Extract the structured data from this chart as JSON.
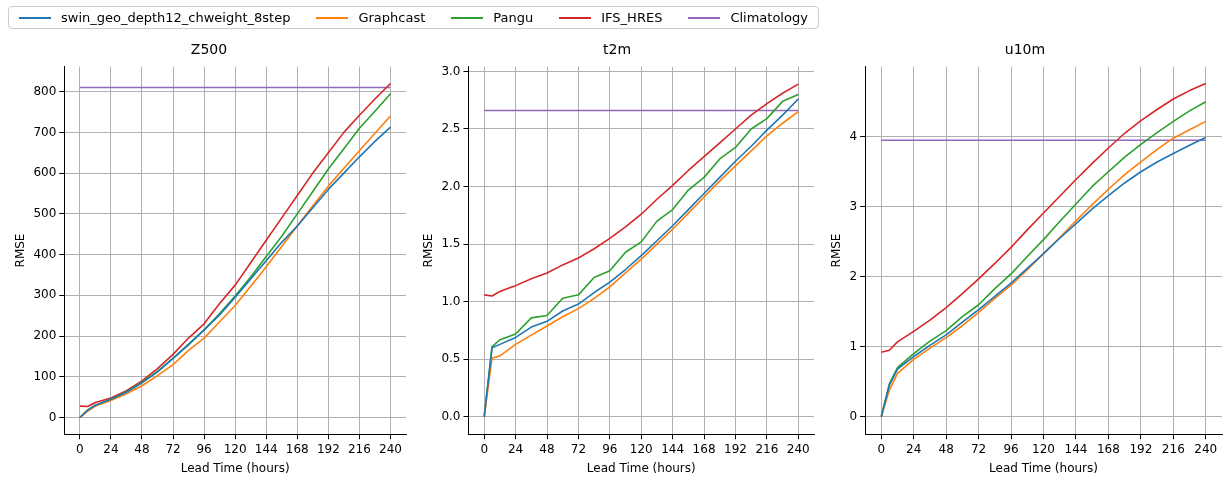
{
  "chart_data": [
    {
      "type": "line",
      "title": "Z500",
      "xlabel": "Lead Time (hours)",
      "ylabel": "RMSE",
      "legend": "top",
      "grid": true,
      "line_style": "solid",
      "marker": "none",
      "x": [
        0,
        6,
        12,
        24,
        36,
        48,
        60,
        72,
        84,
        96,
        108,
        120,
        132,
        144,
        156,
        168,
        180,
        192,
        204,
        216,
        228,
        240
      ],
      "xlim": [
        -12,
        252
      ],
      "xticks": [
        0,
        24,
        48,
        72,
        96,
        120,
        144,
        168,
        192,
        216,
        240
      ],
      "ylim": [
        -41,
        861
      ],
      "yticks": [
        0,
        100,
        200,
        300,
        400,
        500,
        600,
        700,
        800
      ],
      "series": [
        {
          "name": "swin_geo_depth12_chweight_8step",
          "color": "#1f77b4",
          "values": [
            0,
            18,
            30,
            45,
            62,
            85,
            112,
            145,
            180,
            215,
            252,
            295,
            340,
            385,
            430,
            470,
            515,
            560,
            600,
            640,
            678,
            713
          ]
        },
        {
          "name": "Graphcast",
          "color": "#ff7f0e",
          "values": [
            0,
            15,
            28,
            42,
            58,
            78,
            103,
            130,
            165,
            195,
            235,
            275,
            322,
            370,
            420,
            470,
            520,
            568,
            612,
            655,
            698,
            740
          ]
        },
        {
          "name": "Pangu",
          "color": "#2ca02c",
          "values": [
            0,
            18,
            30,
            45,
            63,
            87,
            113,
            145,
            178,
            215,
            255,
            298,
            345,
            395,
            445,
            500,
            555,
            610,
            660,
            710,
            752,
            795
          ]
        },
        {
          "name": "IFS_HRES",
          "color": "#d62728",
          "values": [
            28,
            27,
            37,
            48,
            66,
            90,
            120,
            155,
            195,
            230,
            280,
            325,
            380,
            435,
            490,
            545,
            600,
            650,
            700,
            742,
            782,
            820
          ]
        },
        {
          "name": "Climatology",
          "color": "#9467bd",
          "values": [
            810,
            810,
            810,
            810,
            810,
            810,
            810,
            810,
            810,
            810,
            810,
            810,
            810,
            810,
            810,
            810,
            810,
            810,
            810,
            810,
            810,
            810
          ]
        }
      ]
    },
    {
      "type": "line",
      "title": "t2m",
      "xlabel": "Lead Time (hours)",
      "ylabel": "RMSE",
      "grid": true,
      "line_style": "solid",
      "marker": "none",
      "x": [
        0,
        6,
        12,
        24,
        36,
        48,
        60,
        72,
        84,
        96,
        108,
        120,
        132,
        144,
        156,
        168,
        180,
        192,
        204,
        216,
        228,
        240
      ],
      "xlim": [
        -12,
        252
      ],
      "xticks": [
        0,
        24,
        48,
        72,
        96,
        120,
        144,
        168,
        192,
        216,
        240
      ],
      "ylim": [
        -0.15,
        3.04
      ],
      "yticks": [
        {
          "value": 0,
          "label": "0.0"
        },
        {
          "value": 0.5,
          "label": "0.5"
        },
        {
          "value": 1,
          "label": "1.0"
        },
        {
          "value": 1.5,
          "label": "1.5"
        },
        {
          "value": 2,
          "label": "2.0"
        },
        {
          "value": 2.5,
          "label": "2.5"
        },
        {
          "value": 3,
          "label": "3.0"
        }
      ],
      "series": [
        {
          "color": "#1f77b4",
          "values": [
            0,
            0.6,
            0.63,
            0.69,
            0.78,
            0.83,
            0.92,
            0.98,
            1.08,
            1.17,
            1.28,
            1.4,
            1.53,
            1.66,
            1.8,
            1.94,
            2.08,
            2.22,
            2.35,
            2.49,
            2.62,
            2.76
          ]
        },
        {
          "color": "#ff7f0e",
          "values": [
            0,
            0.51,
            0.53,
            0.63,
            0.71,
            0.79,
            0.87,
            0.94,
            1.03,
            1.13,
            1.25,
            1.37,
            1.5,
            1.63,
            1.77,
            1.91,
            2.05,
            2.18,
            2.31,
            2.44,
            2.55,
            2.65
          ]
        },
        {
          "color": "#2ca02c",
          "values": [
            0,
            0.61,
            0.67,
            0.72,
            0.86,
            0.88,
            1.03,
            1.06,
            1.21,
            1.27,
            1.43,
            1.52,
            1.7,
            1.8,
            1.97,
            2.08,
            2.24,
            2.34,
            2.5,
            2.59,
            2.74,
            2.8
          ]
        },
        {
          "color": "#d62728",
          "values": [
            1.06,
            1.05,
            1.09,
            1.14,
            1.2,
            1.25,
            1.32,
            1.38,
            1.46,
            1.55,
            1.65,
            1.76,
            1.89,
            2.01,
            2.14,
            2.26,
            2.38,
            2.5,
            2.62,
            2.72,
            2.81,
            2.89
          ]
        },
        {
          "color": "#9467bd",
          "values": [
            2.66,
            2.66,
            2.66,
            2.66,
            2.66,
            2.66,
            2.66,
            2.66,
            2.66,
            2.66,
            2.66,
            2.66,
            2.66,
            2.66,
            2.66,
            2.66,
            2.66,
            2.66,
            2.66,
            2.66,
            2.66,
            2.66
          ]
        }
      ]
    },
    {
      "type": "line",
      "title": "u10m",
      "xlabel": "Lead Time (hours)",
      "ylabel": "RMSE",
      "grid": true,
      "line_style": "solid",
      "marker": "none",
      "x": [
        0,
        6,
        12,
        24,
        36,
        48,
        60,
        72,
        84,
        96,
        108,
        120,
        132,
        144,
        156,
        168,
        180,
        192,
        204,
        216,
        228,
        240
      ],
      "xlim": [
        -12,
        252
      ],
      "xticks": [
        0,
        24,
        48,
        72,
        96,
        120,
        144,
        168,
        192,
        216,
        240
      ],
      "ylim": [
        -0.25,
        5
      ],
      "yticks": [
        0,
        1,
        2,
        3,
        4
      ],
      "series": [
        {
          "color": "#1f77b4",
          "values": [
            0,
            0.45,
            0.68,
            0.86,
            1.02,
            1.17,
            1.35,
            1.53,
            1.72,
            1.91,
            2.12,
            2.33,
            2.55,
            2.76,
            2.97,
            3.16,
            3.34,
            3.5,
            3.64,
            3.76,
            3.88,
            3.99
          ]
        },
        {
          "color": "#ff7f0e",
          "values": [
            0,
            0.38,
            0.62,
            0.82,
            0.98,
            1.13,
            1.3,
            1.49,
            1.69,
            1.88,
            2.1,
            2.33,
            2.56,
            2.8,
            3.03,
            3.25,
            3.46,
            3.64,
            3.82,
            3.98,
            4.1,
            4.22
          ]
        },
        {
          "color": "#2ca02c",
          "values": [
            0,
            0.47,
            0.7,
            0.9,
            1.08,
            1.23,
            1.43,
            1.6,
            1.83,
            2.04,
            2.29,
            2.53,
            2.79,
            3.04,
            3.29,
            3.5,
            3.71,
            3.89,
            4.06,
            4.22,
            4.37,
            4.5
          ]
        },
        {
          "color": "#d62728",
          "values": [
            0.92,
            0.95,
            1.07,
            1.22,
            1.38,
            1.56,
            1.76,
            1.97,
            2.19,
            2.42,
            2.67,
            2.91,
            3.15,
            3.39,
            3.62,
            3.84,
            4.05,
            4.23,
            4.39,
            4.54,
            4.66,
            4.76
          ]
        },
        {
          "color": "#9467bd",
          "values": [
            3.95,
            3.95,
            3.95,
            3.95,
            3.95,
            3.95,
            3.95,
            3.95,
            3.95,
            3.95,
            3.95,
            3.95,
            3.95,
            3.95,
            3.95,
            3.95,
            3.95,
            3.95,
            3.95,
            3.95,
            3.95,
            3.95
          ]
        }
      ]
    }
  ]
}
